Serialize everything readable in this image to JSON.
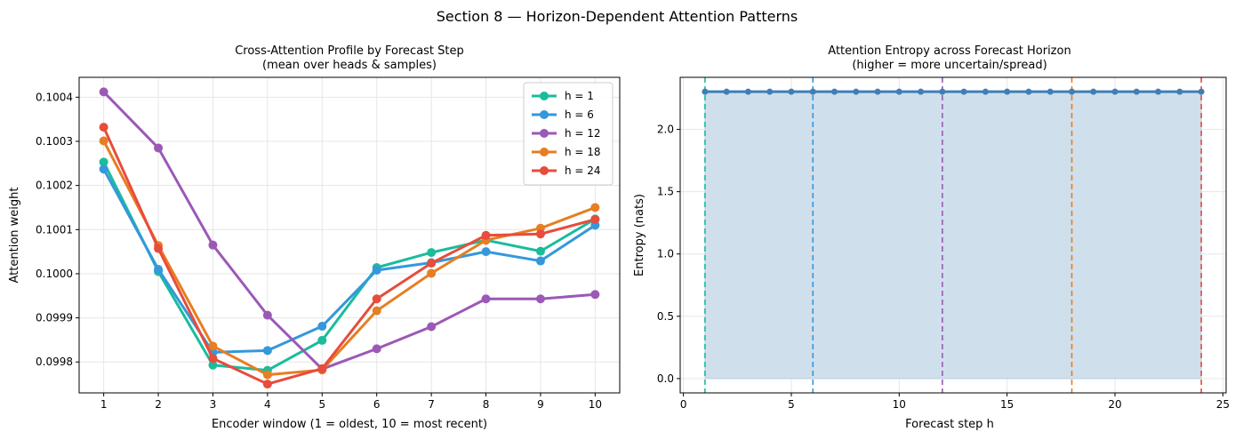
{
  "suptitle": "Section 8 — Horizon-Dependent Attention Patterns",
  "chart_data": [
    {
      "type": "line",
      "title_line1": "Cross-Attention Profile by Forecast Step",
      "title_line2": "(mean over heads & samples)",
      "xlabel": "Encoder window (1 = oldest,  10 = most recent)",
      "ylabel": "Attention weight",
      "x": [
        1,
        2,
        3,
        4,
        5,
        6,
        7,
        8,
        9,
        10
      ],
      "xlim": [
        0.55,
        10.45
      ],
      "ylim": [
        0.09973,
        0.100445
      ],
      "xticks": [
        "1",
        "2",
        "3",
        "4",
        "5",
        "6",
        "7",
        "8",
        "9",
        "10"
      ],
      "yticks": [
        0.0998,
        0.0999,
        0.1,
        0.1001,
        0.1002,
        0.1003,
        0.1004
      ],
      "ytick_labels": [
        "0.0998",
        "0.0999",
        "0.1000",
        "0.1001",
        "0.1002",
        "0.1003",
        "0.1004"
      ],
      "grid": true,
      "legend": "top-right",
      "series": [
        {
          "name": "h = 1",
          "color": "#1abc9c",
          "values": [
            0.100253,
            0.100005,
            0.099793,
            0.099781,
            0.099849,
            0.100014,
            0.100048,
            0.100076,
            0.100051,
            0.100124
          ]
        },
        {
          "name": "h = 6",
          "color": "#3498db",
          "values": [
            0.100237,
            0.10001,
            0.099822,
            0.099826,
            0.099881,
            0.100008,
            0.100025,
            0.10005,
            0.100029,
            0.10011
          ]
        },
        {
          "name": "h = 12",
          "color": "#9b59b6",
          "values": [
            0.100412,
            0.100285,
            0.100065,
            0.099906,
            0.099784,
            0.09983,
            0.09988,
            0.099943,
            0.099943,
            0.099953
          ]
        },
        {
          "name": "h = 18",
          "color": "#e67e22",
          "values": [
            0.100301,
            0.100064,
            0.099836,
            0.099771,
            0.099782,
            0.099916,
            0.100001,
            0.100076,
            0.100103,
            0.10015
          ]
        },
        {
          "name": "h = 24",
          "color": "#e74c3c",
          "values": [
            0.100332,
            0.100057,
            0.099808,
            0.09975,
            0.099785,
            0.099943,
            0.100024,
            0.100087,
            0.10009,
            0.100123
          ]
        }
      ]
    },
    {
      "type": "area",
      "title_line1": "Attention Entropy across Forecast Horizon",
      "title_line2": "(higher = more uncertain/spread)",
      "xlabel": "Forecast step h",
      "ylabel": "Entropy (nats)",
      "x": [
        1,
        2,
        3,
        4,
        5,
        6,
        7,
        8,
        9,
        10,
        11,
        12,
        13,
        14,
        15,
        16,
        17,
        18,
        19,
        20,
        21,
        22,
        23,
        24
      ],
      "values": [
        2.3026,
        2.3026,
        2.3026,
        2.3026,
        2.3026,
        2.3026,
        2.3026,
        2.3026,
        2.3026,
        2.3026,
        2.3026,
        2.3026,
        2.3026,
        2.3026,
        2.3026,
        2.3026,
        2.3026,
        2.3026,
        2.3026,
        2.3026,
        2.3026,
        2.3026,
        2.3026,
        2.3026
      ],
      "xlim": [
        -0.15,
        25.15
      ],
      "ylim": [
        -0.115,
        2.418
      ],
      "xticks": [
        0,
        5,
        10,
        15,
        20,
        25
      ],
      "xtick_labels": [
        "0",
        "5",
        "10",
        "15",
        "20",
        "25"
      ],
      "yticks": [
        0.0,
        0.5,
        1.0,
        1.5,
        2.0
      ],
      "ytick_labels": [
        "0.0",
        "0.5",
        "1.0",
        "1.5",
        "2.0"
      ],
      "grid": true,
      "line_color": "#3f7fb5",
      "fill_color": "#cfdfec",
      "vlines": [
        {
          "x": 1,
          "color": "#1abc9c"
        },
        {
          "x": 6,
          "color": "#3498db"
        },
        {
          "x": 12,
          "color": "#9b59b6"
        },
        {
          "x": 18,
          "color": "#e67e22"
        },
        {
          "x": 24,
          "color": "#e74c3c"
        }
      ]
    }
  ]
}
